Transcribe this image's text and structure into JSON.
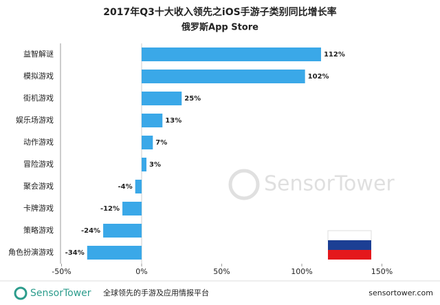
{
  "chart_data": {
    "type": "hbar",
    "title": "2017年Q3十大收入领先之iOS手游子类别同比增长率",
    "subtitle": "俄罗斯App Store",
    "categories": [
      "益智解谜",
      "模拟游戏",
      "街机游戏",
      "娱乐场游戏",
      "动作游戏",
      "冒险游戏",
      "聚会游戏",
      "卡牌游戏",
      "策略游戏",
      "角色扮演游戏"
    ],
    "values": [
      112,
      102,
      25,
      13,
      7,
      3,
      -4,
      -12,
      -24,
      -34
    ],
    "value_labels": [
      "112%",
      "102%",
      "25%",
      "13%",
      "7%",
      "3%",
      "-4%",
      "-12%",
      "-24%",
      "-34%"
    ],
    "color": "#3aa8e8",
    "xlim": [
      -50,
      150
    ],
    "xticks": [
      {
        "value": -50,
        "label": "-50%"
      },
      {
        "value": 0,
        "label": "0%"
      },
      {
        "value": 50,
        "label": "50%"
      },
      {
        "value": 100,
        "label": "100%"
      },
      {
        "value": 150,
        "label": "150%"
      }
    ],
    "grid": false
  },
  "watermark": "SensorTower",
  "footer": {
    "brand": "SensorTower",
    "slogan": "全球领先的手游及应用情报平台",
    "url": "sensortower.com"
  }
}
